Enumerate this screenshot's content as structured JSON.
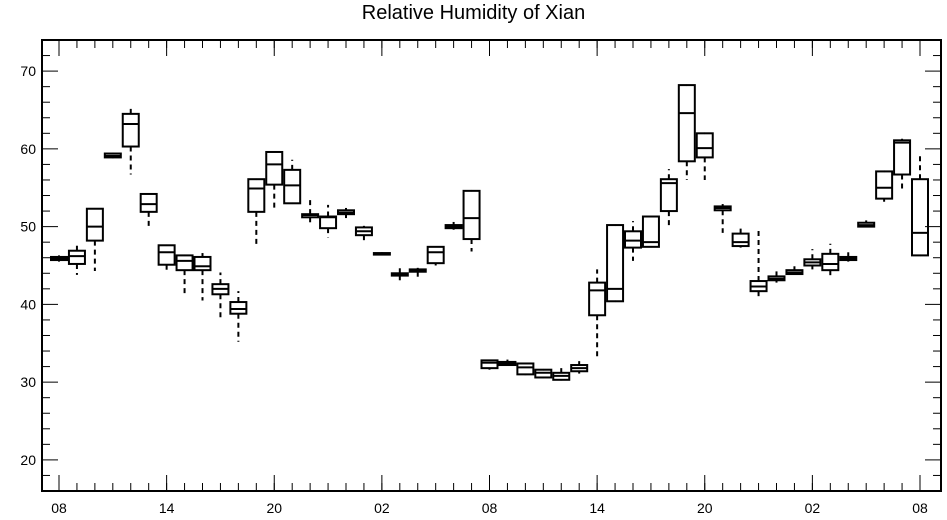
{
  "chart_data": {
    "type": "box",
    "title": "Relative Humidity of Xian",
    "xlabel": "",
    "ylabel": "",
    "ylim": [
      16,
      74
    ],
    "y_ticks": [
      20,
      30,
      40,
      50,
      60,
      70
    ],
    "x_tick_labels": [
      "08",
      "14",
      "20",
      "02",
      "08",
      "14",
      "20",
      "02",
      "08"
    ],
    "x_tick_index": [
      0,
      6,
      12,
      18,
      24,
      30,
      36,
      42,
      48
    ],
    "grid": false,
    "boxes": [
      {
        "x": 0,
        "q1": 45.7,
        "median": 45.9,
        "q3": 46.1,
        "min": 45.5,
        "max": 46.3
      },
      {
        "x": 1,
        "q1": 45.2,
        "median": 46.2,
        "q3": 46.9,
        "min": 43.8,
        "max": 48.0
      },
      {
        "x": 2,
        "q1": 48.2,
        "median": 50.0,
        "q3": 52.3,
        "min": 44.3,
        "max": 52.3
      },
      {
        "x": 3,
        "q1": 58.9,
        "median": 59.1,
        "q3": 59.4,
        "min": 58.8,
        "max": 59.5
      },
      {
        "x": 4,
        "q1": 60.3,
        "median": 63.2,
        "q3": 64.5,
        "min": 56.7,
        "max": 65.3
      },
      {
        "x": 5,
        "q1": 51.9,
        "median": 52.9,
        "q3": 54.2,
        "min": 49.7,
        "max": 54.2
      },
      {
        "x": 6,
        "q1": 45.1,
        "median": 46.7,
        "q3": 47.6,
        "min": 44.0,
        "max": 47.6
      },
      {
        "x": 7,
        "q1": 44.4,
        "median": 45.6,
        "q3": 46.3,
        "min": 41.3,
        "max": 46.3
      },
      {
        "x": 8,
        "q1": 44.4,
        "median": 44.9,
        "q3": 46.1,
        "min": 40.5,
        "max": 46.6
      },
      {
        "x": 9,
        "q1": 41.3,
        "median": 42.0,
        "q3": 42.6,
        "min": 37.9,
        "max": 44.1
      },
      {
        "x": 10,
        "q1": 38.8,
        "median": 39.4,
        "q3": 40.3,
        "min": 35.2,
        "max": 41.7
      },
      {
        "x": 11,
        "q1": 51.9,
        "median": 54.9,
        "q3": 56.1,
        "min": 47.3,
        "max": 56.1
      },
      {
        "x": 12,
        "q1": 55.4,
        "median": 58.0,
        "q3": 59.6,
        "min": 52.3,
        "max": 59.6
      },
      {
        "x": 13,
        "q1": 53.0,
        "median": 55.3,
        "q3": 57.3,
        "min": 53.0,
        "max": 58.6
      },
      {
        "x": 14,
        "q1": 51.2,
        "median": 51.5,
        "q3": 51.6,
        "min": 50.1,
        "max": 53.5
      },
      {
        "x": 15,
        "q1": 49.8,
        "median": 51.2,
        "q3": 51.3,
        "min": 48.6,
        "max": 52.8
      },
      {
        "x": 16,
        "q1": 51.6,
        "median": 51.8,
        "q3": 52.1,
        "min": 51.1,
        "max": 52.4
      },
      {
        "x": 17,
        "q1": 48.9,
        "median": 49.4,
        "q3": 49.9,
        "min": 48.2,
        "max": 50.1
      },
      {
        "x": 18,
        "q1": 46.4,
        "median": 46.5,
        "q3": 46.6,
        "min": 46.3,
        "max": 46.7
      },
      {
        "x": 19,
        "q1": 43.7,
        "median": 43.9,
        "q3": 44.0,
        "min": 43.1,
        "max": 44.7
      },
      {
        "x": 20,
        "q1": 44.2,
        "median": 44.3,
        "q3": 44.5,
        "min": 43.3,
        "max": 44.7
      },
      {
        "x": 21,
        "q1": 45.3,
        "median": 46.7,
        "q3": 47.4,
        "min": 45.0,
        "max": 47.5
      },
      {
        "x": 22,
        "q1": 49.8,
        "median": 50.0,
        "q3": 50.2,
        "min": 49.6,
        "max": 50.6
      },
      {
        "x": 23,
        "q1": 48.4,
        "median": 51.1,
        "q3": 54.6,
        "min": 46.8,
        "max": 54.6
      },
      {
        "x": 24,
        "q1": 31.8,
        "median": 32.5,
        "q3": 32.8,
        "min": 31.6,
        "max": 32.9
      },
      {
        "x": 25,
        "q1": 32.2,
        "median": 32.4,
        "q3": 32.6,
        "min": 32.1,
        "max": 32.9
      },
      {
        "x": 26,
        "q1": 31.0,
        "median": 31.9,
        "q3": 32.4,
        "min": 30.9,
        "max": 32.4
      },
      {
        "x": 27,
        "q1": 30.6,
        "median": 31.2,
        "q3": 31.6,
        "min": 30.5,
        "max": 31.6
      },
      {
        "x": 28,
        "q1": 30.3,
        "median": 30.8,
        "q3": 31.2,
        "min": 30.2,
        "max": 31.8
      },
      {
        "x": 29,
        "q1": 31.4,
        "median": 31.8,
        "q3": 32.2,
        "min": 31.1,
        "max": 32.7
      },
      {
        "x": 30,
        "q1": 38.6,
        "median": 41.8,
        "q3": 42.8,
        "min": 33.2,
        "max": 44.5
      },
      {
        "x": 31,
        "q1": 40.4,
        "median": 42.0,
        "q3": 50.2,
        "min": 40.4,
        "max": 50.2
      },
      {
        "x": 32,
        "q1": 47.3,
        "median": 48.2,
        "q3": 49.4,
        "min": 45.6,
        "max": 50.7
      },
      {
        "x": 33,
        "q1": 47.4,
        "median": 48.0,
        "q3": 51.3,
        "min": 47.4,
        "max": 51.3
      },
      {
        "x": 34,
        "q1": 52.0,
        "median": 55.6,
        "q3": 56.1,
        "min": 49.9,
        "max": 57.4
      },
      {
        "x": 35,
        "q1": 58.4,
        "median": 64.6,
        "q3": 68.2,
        "min": 56.0,
        "max": 68.2
      },
      {
        "x": 36,
        "q1": 58.9,
        "median": 60.1,
        "q3": 62.0,
        "min": 56.0,
        "max": 62.0
      },
      {
        "x": 37,
        "q1": 52.1,
        "median": 52.4,
        "q3": 52.6,
        "min": 49.2,
        "max": 52.9
      },
      {
        "x": 38,
        "q1": 47.5,
        "median": 48.0,
        "q3": 49.1,
        "min": 47.3,
        "max": 50.1
      },
      {
        "x": 39,
        "q1": 41.7,
        "median": 42.3,
        "q3": 43.0,
        "min": 40.8,
        "max": 49.6
      },
      {
        "x": 40,
        "q1": 43.1,
        "median": 43.3,
        "q3": 43.6,
        "min": 42.8,
        "max": 44.6
      },
      {
        "x": 41,
        "q1": 43.9,
        "median": 44.1,
        "q3": 44.4,
        "min": 43.8,
        "max": 44.9
      },
      {
        "x": 42,
        "q1": 45.0,
        "median": 45.4,
        "q3": 45.8,
        "min": 44.5,
        "max": 47.1
      },
      {
        "x": 43,
        "q1": 44.4,
        "median": 45.2,
        "q3": 46.5,
        "min": 43.7,
        "max": 47.8
      },
      {
        "x": 44,
        "q1": 45.7,
        "median": 45.9,
        "q3": 46.1,
        "min": 45.5,
        "max": 46.7
      },
      {
        "x": 45,
        "q1": 50.0,
        "median": 50.2,
        "q3": 50.5,
        "min": 49.9,
        "max": 50.8
      },
      {
        "x": 46,
        "q1": 53.6,
        "median": 55.0,
        "q3": 57.1,
        "min": 53.2,
        "max": 57.1
      },
      {
        "x": 47,
        "q1": 56.7,
        "median": 60.8,
        "q3": 61.1,
        "min": 54.6,
        "max": 61.3
      },
      {
        "x": 48,
        "q1": 46.3,
        "median": 49.2,
        "q3": 56.1,
        "min": 46.3,
        "max": 59.2
      }
    ]
  }
}
